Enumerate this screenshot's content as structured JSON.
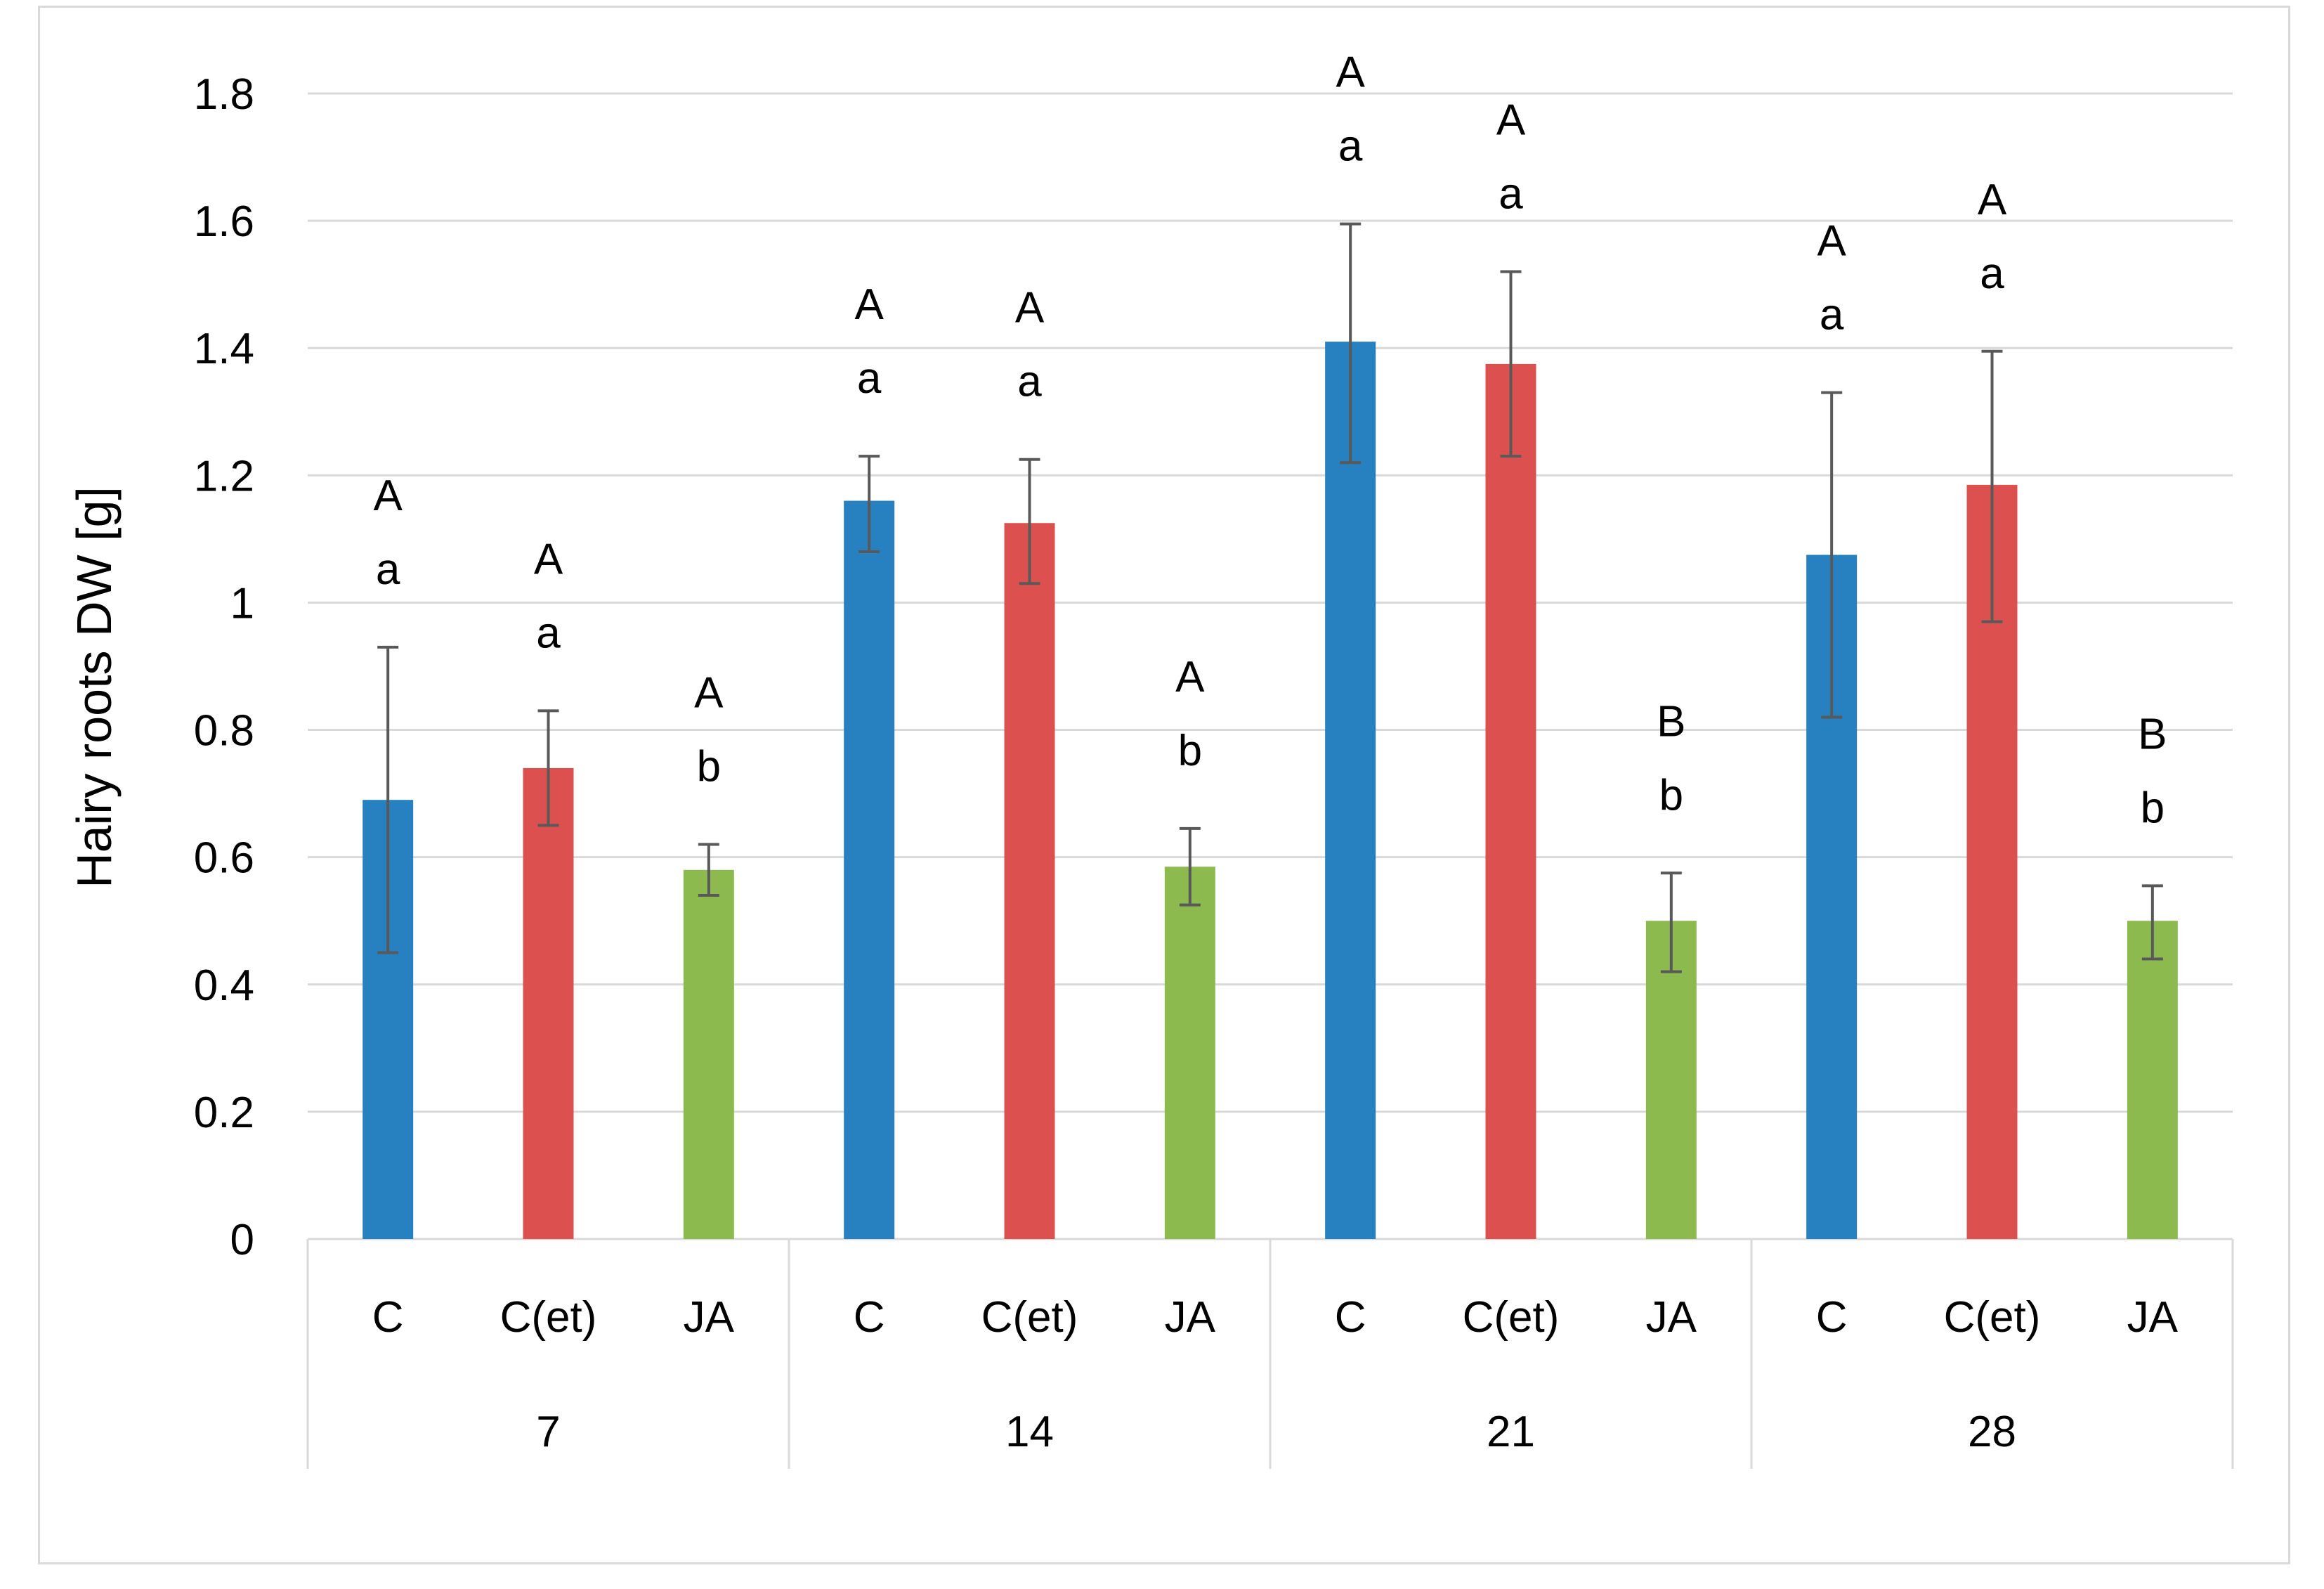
{
  "chart_data": {
    "type": "bar",
    "title": "",
    "ylabel": "Hairy roots DW [g]",
    "xlabel": "",
    "ylim": [
      0,
      1.8
    ],
    "yticks": [
      "0",
      "0.2",
      "0.4",
      "0.6",
      "0.8",
      "1",
      "1.2",
      "1.4",
      "1.6",
      "1.8"
    ],
    "grid": true,
    "legend": "none",
    "groups": [
      "7",
      "14",
      "21",
      "28"
    ],
    "categories": [
      "C",
      "C(et)",
      "JA"
    ],
    "colors": {
      "C": "#2781c0",
      "C(et)": "#dc5150",
      "JA": "#8dba4e"
    },
    "bars": [
      {
        "group": "7",
        "category": "C",
        "value": 0.69,
        "error_low": 0.45,
        "error_high": 0.93,
        "upper": "A",
        "lower": "a"
      },
      {
        "group": "7",
        "category": "C(et)",
        "value": 0.74,
        "error_low": 0.65,
        "error_high": 0.83,
        "upper": "A",
        "lower": "a"
      },
      {
        "group": "7",
        "category": "JA",
        "value": 0.58,
        "error_low": 0.54,
        "error_high": 0.62,
        "upper": "A",
        "lower": "b"
      },
      {
        "group": "14",
        "category": "C",
        "value": 1.16,
        "error_low": 1.08,
        "error_high": 1.23,
        "upper": "A",
        "lower": "a"
      },
      {
        "group": "14",
        "category": "C(et)",
        "value": 1.125,
        "error_low": 1.03,
        "error_high": 1.225,
        "upper": "A",
        "lower": "a"
      },
      {
        "group": "14",
        "category": "JA",
        "value": 0.585,
        "error_low": 0.525,
        "error_high": 0.645,
        "upper": "A",
        "lower": "b"
      },
      {
        "group": "21",
        "category": "C",
        "value": 1.41,
        "error_low": 1.22,
        "error_high": 1.595,
        "upper": "A",
        "lower": "a"
      },
      {
        "group": "21",
        "category": "C(et)",
        "value": 1.375,
        "error_low": 1.23,
        "error_high": 1.52,
        "upper": "A",
        "lower": "a"
      },
      {
        "group": "21",
        "category": "JA",
        "value": 0.5,
        "error_low": 0.42,
        "error_high": 0.575,
        "upper": "B",
        "lower": "b"
      },
      {
        "group": "28",
        "category": "C",
        "value": 1.075,
        "error_low": 0.82,
        "error_high": 1.33,
        "upper": "A",
        "lower": "a"
      },
      {
        "group": "28",
        "category": "C(et)",
        "value": 1.185,
        "error_low": 0.97,
        "error_high": 1.395,
        "upper": "A",
        "lower": "a"
      },
      {
        "group": "28",
        "category": "JA",
        "value": 0.5,
        "error_low": 0.44,
        "error_high": 0.555,
        "upper": "B",
        "lower": "b"
      }
    ]
  }
}
